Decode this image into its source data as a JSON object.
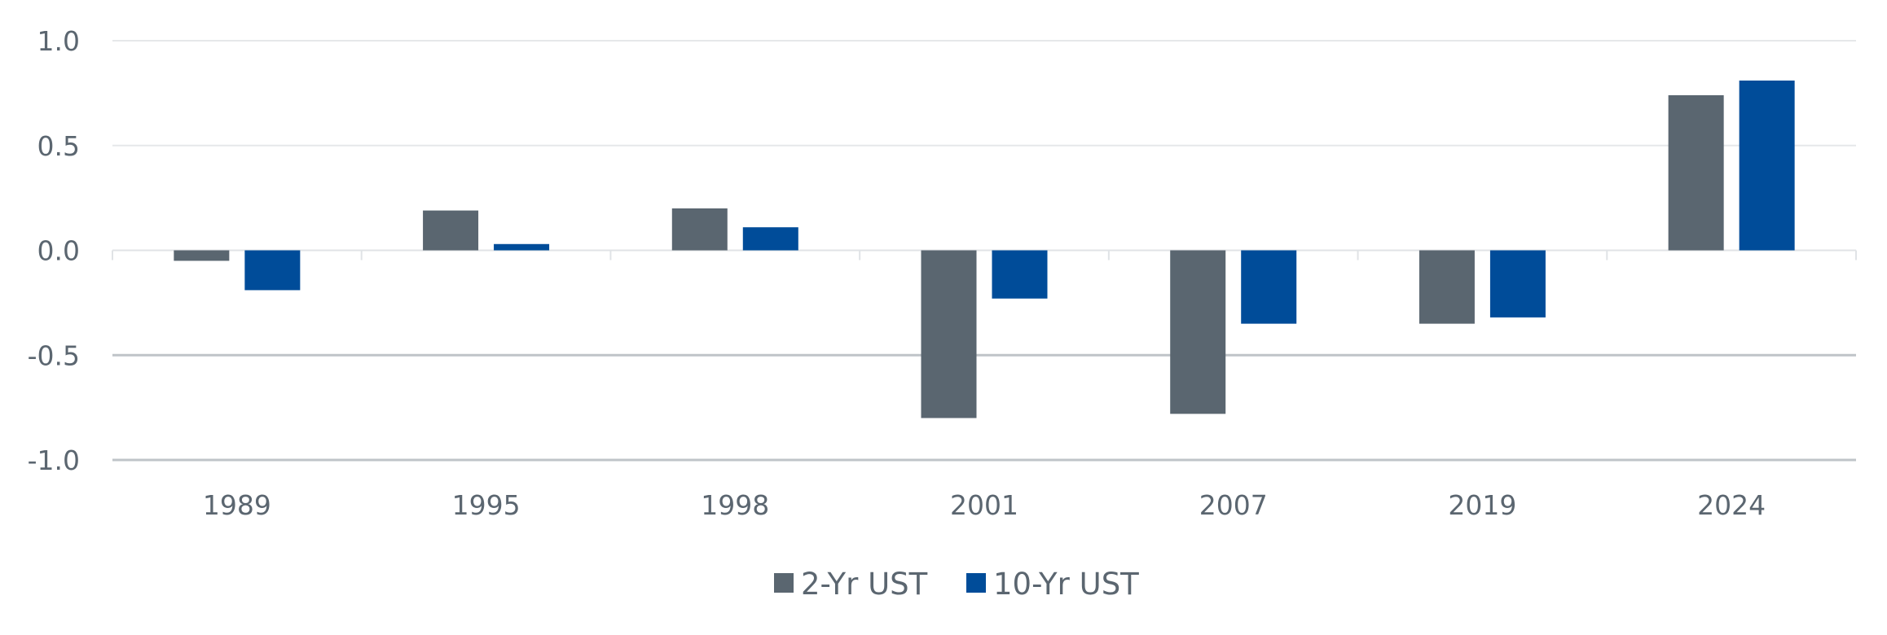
{
  "chart_data": {
    "type": "bar",
    "title": "",
    "xlabel": "",
    "ylabel": "",
    "categories": [
      "1989",
      "1995",
      "1998",
      "2001",
      "2007",
      "2019",
      "2024"
    ],
    "series": [
      {
        "name": "2-Yr UST",
        "color": "#5a6670",
        "values": [
          -0.05,
          0.19,
          0.2,
          -0.8,
          -0.78,
          -0.35,
          0.74
        ]
      },
      {
        "name": "10-Yr UST",
        "color": "#004c99",
        "values": [
          -0.19,
          0.03,
          0.11,
          -0.23,
          -0.35,
          -0.32,
          0.81
        ]
      }
    ],
    "ylim": [
      -1.0,
      1.0
    ],
    "yticks": [
      "1.0",
      "0.5",
      "0.0",
      "-0.5",
      "-1.0"
    ],
    "grid": true,
    "legend": "bottom-center"
  }
}
